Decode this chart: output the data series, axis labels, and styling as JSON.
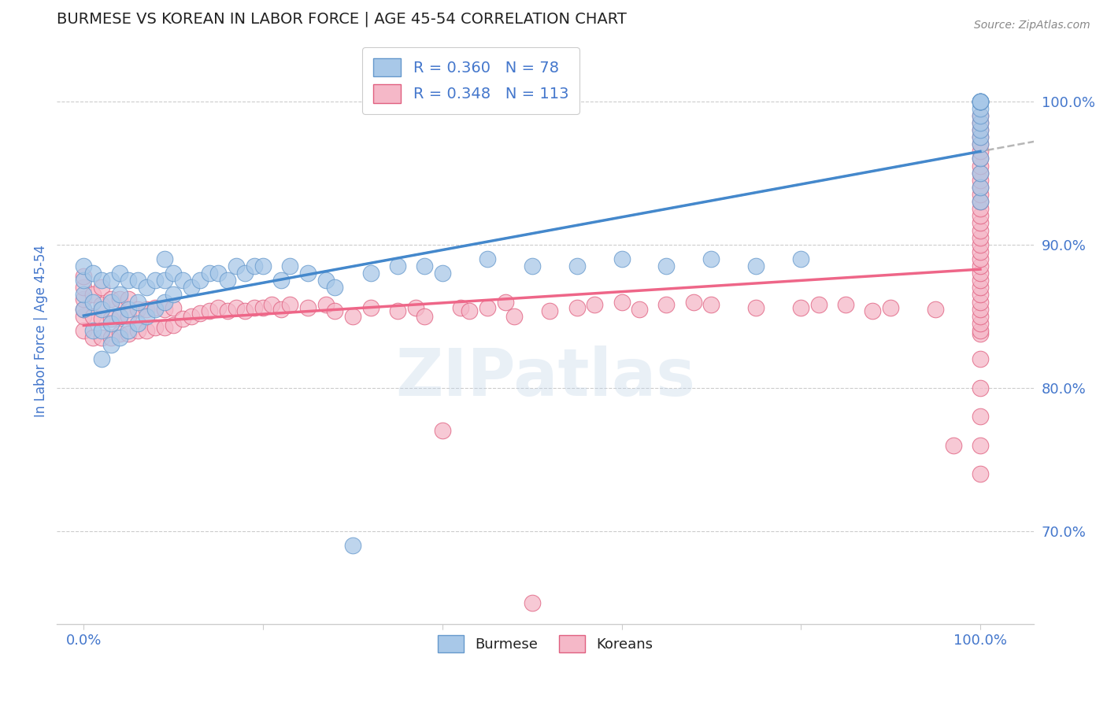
{
  "title": "BURMESE VS KOREAN IN LABOR FORCE | AGE 45-54 CORRELATION CHART",
  "source": "Source: ZipAtlas.com",
  "ylabel": "In Labor Force | Age 45-54",
  "x_ticks": [
    0.0,
    0.2,
    0.4,
    0.6,
    0.8,
    1.0
  ],
  "y_ticks_right": [
    0.7,
    0.8,
    0.9,
    1.0
  ],
  "y_tick_labels_right": [
    "70.0%",
    "80.0%",
    "90.0%",
    "100.0%"
  ],
  "xlim": [
    -0.03,
    1.06
  ],
  "ylim": [
    0.635,
    1.045
  ],
  "burmese_fill": "#a8c8e8",
  "burmese_edge": "#6699cc",
  "korean_fill": "#f5b8c8",
  "korean_edge": "#e06080",
  "burmese_line_color": "#4488cc",
  "korean_line_color": "#ee6688",
  "dashed_line_color": "#aaaaaa",
  "title_color": "#222222",
  "source_color": "#888888",
  "axis_label_color": "#4477cc",
  "tick_label_color": "#4477cc",
  "grid_color": "#cccccc",
  "legend_R_burmese": "R = 0.360",
  "legend_N_burmese": "N = 78",
  "legend_R_korean": "R = 0.348",
  "legend_N_korean": "N = 113",
  "legend_label_burmese": "Burmese",
  "legend_label_korean": "Koreans",
  "watermark": "ZIPatlas",
  "burmese_x": [
    0.0,
    0.0,
    0.0,
    0.0,
    0.01,
    0.01,
    0.01,
    0.02,
    0.02,
    0.02,
    0.02,
    0.03,
    0.03,
    0.03,
    0.03,
    0.04,
    0.04,
    0.04,
    0.04,
    0.05,
    0.05,
    0.05,
    0.06,
    0.06,
    0.06,
    0.07,
    0.07,
    0.08,
    0.08,
    0.09,
    0.09,
    0.09,
    0.1,
    0.1,
    0.11,
    0.12,
    0.13,
    0.14,
    0.15,
    0.16,
    0.17,
    0.18,
    0.19,
    0.2,
    0.22,
    0.23,
    0.25,
    0.27,
    0.28,
    0.3,
    0.32,
    0.35,
    0.38,
    0.4,
    0.45,
    0.5,
    0.55,
    0.6,
    0.65,
    0.7,
    0.75,
    0.8,
    1.0,
    1.0,
    1.0,
    1.0,
    1.0,
    1.0,
    1.0,
    1.0,
    1.0,
    1.0,
    1.0,
    1.0,
    1.0,
    1.0,
    1.0,
    1.0
  ],
  "burmese_y": [
    0.855,
    0.865,
    0.875,
    0.885,
    0.84,
    0.86,
    0.88,
    0.82,
    0.84,
    0.855,
    0.875,
    0.83,
    0.845,
    0.86,
    0.875,
    0.835,
    0.85,
    0.865,
    0.88,
    0.84,
    0.855,
    0.875,
    0.845,
    0.86,
    0.875,
    0.85,
    0.87,
    0.855,
    0.875,
    0.86,
    0.875,
    0.89,
    0.865,
    0.88,
    0.875,
    0.87,
    0.875,
    0.88,
    0.88,
    0.875,
    0.885,
    0.88,
    0.885,
    0.885,
    0.875,
    0.885,
    0.88,
    0.875,
    0.87,
    0.69,
    0.88,
    0.885,
    0.885,
    0.88,
    0.89,
    0.885,
    0.885,
    0.89,
    0.885,
    0.89,
    0.885,
    0.89,
    0.93,
    0.94,
    0.95,
    0.96,
    0.97,
    0.975,
    0.98,
    0.985,
    0.99,
    0.995,
    1.0,
    1.0,
    1.0,
    1.0,
    1.0,
    1.0
  ],
  "korean_x": [
    0.0,
    0.0,
    0.0,
    0.0,
    0.0,
    0.0,
    0.01,
    0.01,
    0.01,
    0.02,
    0.02,
    0.02,
    0.02,
    0.03,
    0.03,
    0.03,
    0.04,
    0.04,
    0.04,
    0.05,
    0.05,
    0.05,
    0.06,
    0.06,
    0.07,
    0.07,
    0.08,
    0.08,
    0.09,
    0.09,
    0.1,
    0.1,
    0.11,
    0.12,
    0.13,
    0.14,
    0.15,
    0.16,
    0.17,
    0.18,
    0.19,
    0.2,
    0.21,
    0.22,
    0.23,
    0.25,
    0.27,
    0.28,
    0.3,
    0.32,
    0.35,
    0.37,
    0.38,
    0.4,
    0.42,
    0.43,
    0.45,
    0.47,
    0.48,
    0.5,
    0.52,
    0.55,
    0.57,
    0.6,
    0.62,
    0.65,
    0.68,
    0.7,
    0.75,
    0.8,
    0.82,
    0.85,
    0.88,
    0.9,
    0.95,
    0.97,
    1.0,
    1.0,
    1.0,
    1.0,
    1.0,
    1.0,
    1.0,
    1.0,
    1.0,
    1.0,
    1.0,
    1.0,
    1.0,
    1.0,
    1.0,
    1.0,
    1.0,
    1.0,
    1.0,
    1.0,
    1.0,
    1.0,
    1.0,
    1.0,
    1.0,
    1.0,
    1.0,
    1.0,
    1.0,
    1.0,
    1.0,
    1.0,
    1.0,
    1.0,
    1.0,
    1.0,
    1.0
  ],
  "korean_y": [
    0.84,
    0.85,
    0.855,
    0.862,
    0.87,
    0.878,
    0.835,
    0.85,
    0.865,
    0.835,
    0.848,
    0.858,
    0.87,
    0.835,
    0.848,
    0.862,
    0.838,
    0.85,
    0.862,
    0.838,
    0.85,
    0.862,
    0.84,
    0.855,
    0.84,
    0.855,
    0.842,
    0.856,
    0.842,
    0.855,
    0.844,
    0.856,
    0.848,
    0.85,
    0.852,
    0.854,
    0.856,
    0.854,
    0.856,
    0.854,
    0.856,
    0.856,
    0.858,
    0.855,
    0.858,
    0.856,
    0.858,
    0.854,
    0.85,
    0.856,
    0.854,
    0.856,
    0.85,
    0.77,
    0.856,
    0.854,
    0.856,
    0.86,
    0.85,
    0.65,
    0.854,
    0.856,
    0.858,
    0.86,
    0.855,
    0.858,
    0.86,
    0.858,
    0.856,
    0.856,
    0.858,
    0.858,
    0.854,
    0.856,
    0.855,
    0.76,
    0.74,
    0.76,
    0.78,
    0.8,
    0.82,
    0.838,
    0.84,
    0.845,
    0.85,
    0.855,
    0.86,
    0.865,
    0.87,
    0.875,
    0.88,
    0.885,
    0.89,
    0.895,
    0.9,
    0.905,
    0.91,
    0.915,
    0.92,
    0.925,
    0.93,
    0.935,
    0.94,
    0.945,
    0.95,
    0.955,
    0.96,
    0.965,
    0.97,
    0.975,
    0.98,
    0.985,
    0.99
  ]
}
